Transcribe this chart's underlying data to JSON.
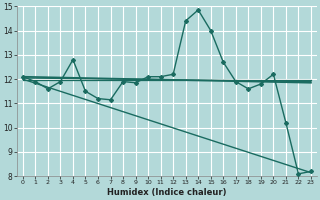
{
  "bg_color": "#b3d9d9",
  "grid_color": "#ffffff",
  "line_color": "#1a6b60",
  "xlabel": "Humidex (Indice chaleur)",
  "xlim": [
    -0.5,
    23.5
  ],
  "ylim": [
    8,
    15
  ],
  "yticks": [
    8,
    9,
    10,
    11,
    12,
    13,
    14,
    15
  ],
  "xticks": [
    0,
    1,
    2,
    3,
    4,
    5,
    6,
    7,
    8,
    9,
    10,
    11,
    12,
    13,
    14,
    15,
    16,
    17,
    18,
    19,
    20,
    21,
    22,
    23
  ],
  "series": [
    {
      "x": [
        0,
        1,
        2,
        3,
        4,
        5,
        6,
        7,
        8,
        9,
        10,
        11,
        12,
        13,
        14,
        15,
        16,
        17,
        18,
        19,
        20,
        21,
        22,
        23
      ],
      "y": [
        12.1,
        11.9,
        11.6,
        11.9,
        12.8,
        11.5,
        11.2,
        11.15,
        11.9,
        11.85,
        12.1,
        12.1,
        12.2,
        14.4,
        14.85,
        14.0,
        12.7,
        11.9,
        11.6,
        11.8,
        12.2,
        10.2,
        8.1,
        8.2
      ],
      "marker": true,
      "linewidth": 1.0,
      "markersize": 2.0
    },
    {
      "x": [
        0,
        23
      ],
      "y": [
        12.0,
        8.15
      ],
      "marker": false,
      "linewidth": 1.0,
      "markersize": 0
    },
    {
      "x": [
        0,
        23
      ],
      "y": [
        12.1,
        11.85
      ],
      "marker": false,
      "linewidth": 1.2,
      "markersize": 0
    },
    {
      "x": [
        0,
        23
      ],
      "y": [
        12.05,
        11.9
      ],
      "marker": false,
      "linewidth": 1.0,
      "markersize": 0
    },
    {
      "x": [
        0,
        23
      ],
      "y": [
        11.95,
        11.95
      ],
      "marker": false,
      "linewidth": 0.9,
      "markersize": 0
    }
  ]
}
